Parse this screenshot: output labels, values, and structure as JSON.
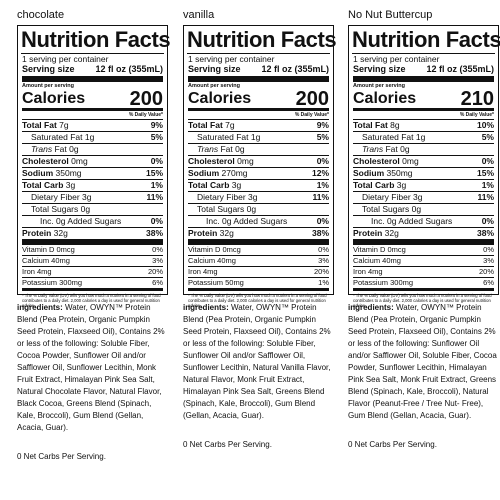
{
  "panels": [
    {
      "flavor": "chocolate",
      "title": "Nutrition Facts",
      "servings": "1 serving per container",
      "serving_label": "Serving size",
      "serving_value": "12 fl oz (355mL)",
      "amount_per_serving": "Amount per serving",
      "calories_label": "Calories",
      "calories": "200",
      "dv_header": "% Daily Value*",
      "rows": [
        {
          "label": "Total Fat",
          "value": "7g",
          "pct": "9%"
        },
        {
          "label": "Saturated Fat",
          "value": "1g",
          "pct": "5%"
        },
        {
          "label": "Trans",
          "value": "Fat 0g",
          "pct": ""
        },
        {
          "label": "Cholesterol",
          "value": "0mg",
          "pct": "0%"
        },
        {
          "label": "Sodium",
          "value": "350mg",
          "pct": "15%"
        },
        {
          "label": "Total Carb",
          "value": "3g",
          "pct": "1%"
        },
        {
          "label": "Dietary Fiber",
          "value": "3g",
          "pct": "11%"
        },
        {
          "label": "Total Sugars",
          "value": "0g",
          "pct": ""
        },
        {
          "label": "Inc. 0g Added Sugars",
          "value": "",
          "pct": "0%"
        },
        {
          "label": "Protein",
          "value": "32g",
          "pct": "38%"
        }
      ],
      "vitamins": [
        {
          "label": "Vitamin D 0mcg",
          "pct": "0%"
        },
        {
          "label": "Calcium 40mg",
          "pct": "3%"
        },
        {
          "label": "Iron 4mg",
          "pct": "20%"
        },
        {
          "label": "Potassium 300mg",
          "pct": "6%"
        }
      ],
      "footnote": "* The % Daily Value (DV) tells you how much a nutrient in a serving of food contributes to a daily diet. 2,000 calories a day is used for general nutrition advice.",
      "ingredients_head": "ingredients:",
      "ingredients": "Water, OWYN™ Protein Blend (Pea Protein, Organic Pumpkin Seed Protein, Flaxseed Oil), Contains 2% or less of the following: Soluble Fiber, Cocoa Powder, Sunflower Oil and/or Safflower Oil, Sunflower Lecithin, Monk Fruit Extract, Himalayan Pink Sea Salt, Natural Chocolate Flavor, Natural Flavor, Black Cocoa, Greens Blend (Spinach, Kale, Broccoli), Gum Blend (Gellan, Acacia, Guar).",
      "net_carbs": "0 Net Carbs Per Serving."
    },
    {
      "flavor": "vanilla",
      "title": "Nutrition Facts",
      "servings": "1 serving per container",
      "serving_label": "Serving size",
      "serving_value": "12 fl oz (355mL)",
      "amount_per_serving": "Amount per serving",
      "calories_label": "Calories",
      "calories": "200",
      "dv_header": "% Daily Value*",
      "rows": [
        {
          "label": "Total Fat",
          "value": "7g",
          "pct": "9%"
        },
        {
          "label": "Saturated Fat",
          "value": "1g",
          "pct": "5%"
        },
        {
          "label": "Trans",
          "value": "Fat 0g",
          "pct": ""
        },
        {
          "label": "Cholesterol",
          "value": "0mg",
          "pct": "0%"
        },
        {
          "label": "Sodium",
          "value": "270mg",
          "pct": "12%"
        },
        {
          "label": "Total Carb",
          "value": "3g",
          "pct": "1%"
        },
        {
          "label": "Dietary Fiber",
          "value": "3g",
          "pct": "11%"
        },
        {
          "label": "Total Sugars",
          "value": "0g",
          "pct": ""
        },
        {
          "label": "Inc. 0g Added Sugars",
          "value": "",
          "pct": "0%"
        },
        {
          "label": "Protein",
          "value": "32g",
          "pct": "38%"
        }
      ],
      "vitamins": [
        {
          "label": "Vitamin D 0mcg",
          "pct": "0%"
        },
        {
          "label": "Calcium 40mg",
          "pct": "3%"
        },
        {
          "label": "Iron 4mg",
          "pct": "20%"
        },
        {
          "label": "Potassium 50mg",
          "pct": "1%"
        }
      ],
      "footnote": "* The % Daily Value (DV) tells you how much a nutrient in a serving of food contributes to a daily diet. 2,000 calories a day is used for general nutrition advice.",
      "ingredients_head": "ingredients:",
      "ingredients": "Water, OWYN™ Protein Blend (Pea Protein, Organic Pumpkin Seed Protein, Flaxseed Oil), Contains 2% or less of the following: Soluble Fiber, Sunflower Oil and/or Safflower Oil, Sunflower Lecithin, Natural Vanilla Flavor, Natural Flavor, Monk Fruit Extract, Himalayan Pink Sea Salt, Greens Blend (Spinach, Kale, Broccoli), Gum Blend (Gellan, Acacia, Guar).",
      "net_carbs": "0 Net Carbs Per Serving."
    },
    {
      "flavor": "No Nut Buttercup",
      "title": "Nutrition Facts",
      "servings": "1 serving per container",
      "serving_label": "Serving size",
      "serving_value": "12 fl oz (355mL)",
      "amount_per_serving": "Amount per serving",
      "calories_label": "Calories",
      "calories": "210",
      "dv_header": "% Daily Value*",
      "rows": [
        {
          "label": "Total Fat",
          "value": "8g",
          "pct": "10%"
        },
        {
          "label": "Saturated Fat",
          "value": "1g",
          "pct": "5%"
        },
        {
          "label": "Trans",
          "value": "Fat 0g",
          "pct": ""
        },
        {
          "label": "Cholesterol",
          "value": "0mg",
          "pct": "0%"
        },
        {
          "label": "Sodium",
          "value": "350mg",
          "pct": "15%"
        },
        {
          "label": "Total Carb",
          "value": "3g",
          "pct": "1%"
        },
        {
          "label": "Dietary Fiber",
          "value": "3g",
          "pct": "11%"
        },
        {
          "label": "Total Sugars",
          "value": "0g",
          "pct": ""
        },
        {
          "label": "Inc. 0g Added Sugars",
          "value": "",
          "pct": "0%"
        },
        {
          "label": "Protein",
          "value": "32g",
          "pct": "38%"
        }
      ],
      "vitamins": [
        {
          "label": "Vitamin D 0mcg",
          "pct": "0%"
        },
        {
          "label": "Calcium 40mg",
          "pct": "3%"
        },
        {
          "label": "Iron 4mg",
          "pct": "20%"
        },
        {
          "label": "Potassium 300mg",
          "pct": "6%"
        }
      ],
      "footnote": "* The % Daily Value (DV) tells you how much a nutrient in a serving of food contributes to a daily diet. 2,000 calories a day is used for general nutrition advice.",
      "ingredients_head": "ingredients:",
      "ingredients": "Water, OWYN™ Protein Blend (Pea Protein, Organic Pumpkin Seed Protein, Flaxseed Oil), Contains 2% or less of the following: Sunflower Oil and/or Safflower Oil, Soluble Fiber, Cocoa Powder, Sunflower Lecithin, Himalayan Pink Sea Salt, Monk Fruit Extract, Greens Blend (Spinach, Kale, Broccoli), Natural Flavor (Peanut-Free / Tree Nut- Free), Gum Blend (Gellan, Acacia, Guar).",
      "net_carbs": "0 Net Carbs Per Serving."
    }
  ]
}
